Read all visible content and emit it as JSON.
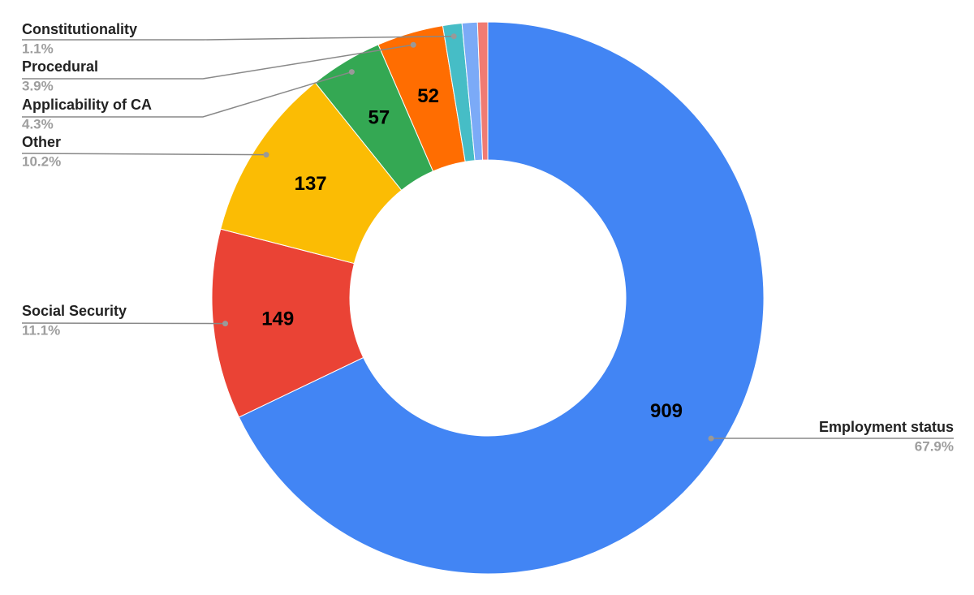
{
  "chart_data": {
    "type": "donut",
    "categories": [
      "Employment status",
      "Social Security",
      "Other",
      "Applicability of CA",
      "Procedural",
      "Constitutionality",
      null,
      null
    ],
    "values": [
      909,
      149,
      137,
      57,
      52,
      15,
      12,
      8
    ],
    "percent_labels": [
      "67.9%",
      "11.1%",
      "10.2%",
      "4.3%",
      "3.9%",
      "1.1%",
      null,
      null
    ],
    "colors": [
      "#4285f4",
      "#ea4335",
      "#fbbc04",
      "#34a853",
      "#ff6d01",
      "#46bdc6",
      "#7baaf7",
      "#f07b72"
    ]
  }
}
